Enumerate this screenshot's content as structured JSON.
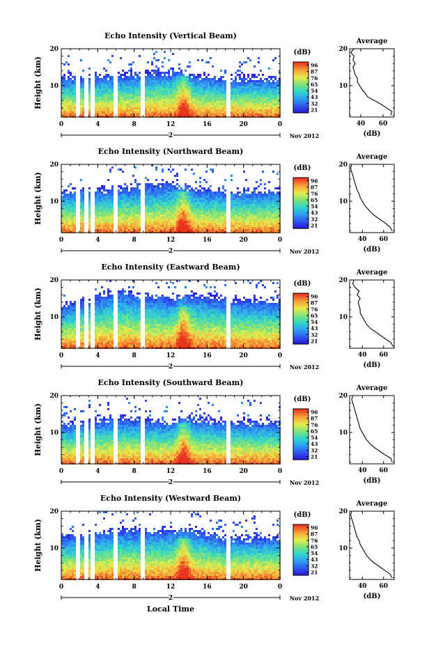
{
  "figure": {
    "xlabel": "Local Time",
    "date_label": "Nov 2012",
    "day_label": "2",
    "colorbar_unit": "(dB)",
    "colorbar_ticks": [
      "96",
      "87",
      "76",
      "65",
      "54",
      "43",
      "32",
      "21"
    ],
    "avg_title": "Average",
    "avg_xlabel": "(dB)"
  },
  "chart_data": [
    {
      "type": "heatmap",
      "title": "Echo Intensity (Vertical Beam)",
      "ylabel": "Height (km)",
      "x_ticks": [
        "0",
        "4",
        "8",
        "12",
        "16",
        "20",
        "0"
      ],
      "y_ticks": [
        "20",
        "10"
      ],
      "xlim": [
        0,
        24
      ],
      "ylim": [
        1.5,
        20
      ],
      "gaps_hours": [
        [
          1.6,
          2.0
        ],
        [
          2.5,
          2.8
        ],
        [
          3.2,
          3.5
        ],
        [
          5.7,
          6.0
        ],
        [
          8.6,
          9.0
        ],
        [
          18.1,
          18.5
        ]
      ],
      "echo_top_km": [
        [
          0,
          11.5
        ],
        [
          6,
          12
        ],
        [
          12,
          13
        ],
        [
          14,
          12
        ],
        [
          18,
          11
        ],
        [
          24,
          11
        ]
      ],
      "profile": {
        "xlabel": "(dB)",
        "x_ticks": [
          "40",
          "60"
        ],
        "xlim": [
          30,
          70
        ],
        "ylim": [
          1.5,
          20
        ],
        "y_ticks": [
          "20",
          "10"
        ],
        "height_km": [
          2,
          3,
          4,
          5,
          6,
          7,
          8,
          9,
          10,
          11,
          12,
          13,
          14,
          15,
          16,
          17,
          18,
          19,
          20
        ],
        "values_db": [
          67,
          68,
          63,
          58,
          52,
          46,
          44,
          41,
          39,
          37,
          37,
          35,
          34,
          33,
          35,
          33,
          34,
          31,
          34
        ]
      }
    },
    {
      "type": "heatmap",
      "title": "Echo Intensity (Northward Beam)",
      "ylabel": "Height (km)",
      "x_ticks": [
        "0",
        "4",
        "8",
        "12",
        "16",
        "20",
        "0"
      ],
      "y_ticks": [
        "20",
        "10"
      ],
      "xlim": [
        0,
        24
      ],
      "ylim": [
        1.5,
        20
      ],
      "gaps_hours": [
        [
          1.6,
          2.0
        ],
        [
          2.5,
          2.8
        ],
        [
          3.2,
          3.5
        ],
        [
          5.7,
          6.0
        ],
        [
          8.6,
          9.0
        ],
        [
          18.1,
          18.5
        ]
      ],
      "echo_top_km": [
        [
          0,
          12
        ],
        [
          6,
          12.5
        ],
        [
          12,
          14
        ],
        [
          14,
          12.5
        ],
        [
          18,
          12
        ],
        [
          24,
          12
        ]
      ],
      "profile": {
        "xlabel": "(dB)",
        "x_ticks": [
          "40",
          "60"
        ],
        "xlim": [
          28,
          70
        ],
        "ylim": [
          1.5,
          20
        ],
        "y_ticks": [
          "20",
          "10"
        ],
        "height_km": [
          2,
          3,
          4,
          5,
          6,
          7,
          8,
          9,
          10,
          11,
          12,
          13,
          14,
          15,
          16,
          17,
          18,
          19,
          20
        ],
        "values_db": [
          68,
          66,
          62,
          57,
          52,
          48,
          45,
          42,
          40,
          38,
          37,
          35,
          34,
          33,
          32,
          31,
          30,
          29,
          30
        ]
      }
    },
    {
      "type": "heatmap",
      "title": "Echo Intensity (Eastward Beam)",
      "ylabel": "Height (km)",
      "x_ticks": [
        "0",
        "4",
        "8",
        "12",
        "16",
        "20",
        "0"
      ],
      "y_ticks": [
        "20",
        "10"
      ],
      "xlim": [
        0,
        24
      ],
      "ylim": [
        1.5,
        20
      ],
      "gaps_hours": [
        [
          1.6,
          2.0
        ],
        [
          2.5,
          2.8
        ],
        [
          3.2,
          3.5
        ],
        [
          5.7,
          6.0
        ],
        [
          8.6,
          9.0
        ],
        [
          18.1,
          18.5
        ]
      ],
      "echo_top_km": [
        [
          0,
          12
        ],
        [
          6,
          16
        ],
        [
          12,
          14
        ],
        [
          14,
          15
        ],
        [
          18,
          14
        ],
        [
          24,
          13
        ]
      ],
      "profile": {
        "xlabel": "(dB)",
        "x_ticks": [
          "40",
          "60"
        ],
        "xlim": [
          28,
          70
        ],
        "ylim": [
          1.5,
          20
        ],
        "y_ticks": [
          "20",
          "10"
        ],
        "height_km": [
          2,
          3,
          4,
          5,
          6,
          7,
          8,
          9,
          10,
          11,
          12,
          13,
          14,
          15,
          16,
          17,
          18,
          19,
          20
        ],
        "values_db": [
          69,
          67,
          62,
          57,
          52,
          47,
          44,
          42,
          40,
          38,
          38,
          37,
          36,
          38,
          35,
          37,
          33,
          31,
          32
        ]
      }
    },
    {
      "type": "heatmap",
      "title": "Echo Intensity (Southward Beam)",
      "ylabel": "Height (km)",
      "x_ticks": [
        "0",
        "4",
        "8",
        "12",
        "16",
        "20",
        "0"
      ],
      "y_ticks": [
        "20",
        "10"
      ],
      "xlim": [
        0,
        24
      ],
      "ylim": [
        1.5,
        20
      ],
      "gaps_hours": [
        [
          1.6,
          2.0
        ],
        [
          2.5,
          2.8
        ],
        [
          3.2,
          3.5
        ],
        [
          5.7,
          6.0
        ],
        [
          8.6,
          9.0
        ],
        [
          18.1,
          18.5
        ]
      ],
      "echo_top_km": [
        [
          0,
          11.5
        ],
        [
          6,
          13
        ],
        [
          12,
          12
        ],
        [
          14,
          13
        ],
        [
          18,
          12
        ],
        [
          24,
          12
        ]
      ],
      "profile": {
        "xlabel": "(dB)",
        "x_ticks": [
          "40",
          "60"
        ],
        "xlim": [
          28,
          70
        ],
        "ylim": [
          1.5,
          20
        ],
        "y_ticks": [
          "20",
          "10"
        ],
        "height_km": [
          2,
          3,
          4,
          5,
          6,
          7,
          8,
          9,
          10,
          11,
          12,
          13,
          14,
          15,
          16,
          17,
          18,
          19,
          20
        ],
        "values_db": [
          68,
          67,
          61,
          56,
          51,
          47,
          44,
          42,
          40,
          38,
          37,
          36,
          35,
          34,
          33,
          32,
          31,
          30,
          31
        ]
      }
    },
    {
      "type": "heatmap",
      "title": "Echo Intensity (Westward Beam)",
      "ylabel": "Height (km)",
      "x_ticks": [
        "0",
        "4",
        "8",
        "12",
        "16",
        "20",
        "0"
      ],
      "y_ticks": [
        "20",
        "10"
      ],
      "xlim": [
        0,
        24
      ],
      "ylim": [
        1.5,
        20
      ],
      "gaps_hours": [
        [
          1.6,
          2.0
        ],
        [
          2.5,
          2.8
        ],
        [
          3.2,
          3.5
        ],
        [
          5.7,
          6.0
        ],
        [
          8.6,
          9.0
        ],
        [
          18.1,
          18.5
        ]
      ],
      "echo_top_km": [
        [
          0,
          12
        ],
        [
          6,
          14
        ],
        [
          12,
          14
        ],
        [
          14,
          14
        ],
        [
          18,
          12
        ],
        [
          24,
          12
        ]
      ],
      "profile": {
        "xlabel": "(dB)",
        "x_ticks": [
          "40",
          "60"
        ],
        "xlim": [
          28,
          70
        ],
        "ylim": [
          1.5,
          20
        ],
        "y_ticks": [
          "20",
          "10"
        ],
        "height_km": [
          2,
          3,
          4,
          5,
          6,
          7,
          8,
          9,
          10,
          11,
          12,
          13,
          14,
          15,
          16,
          17,
          18,
          19,
          20
        ],
        "values_db": [
          68,
          66,
          61,
          56,
          51,
          47,
          44,
          42,
          40,
          38,
          37,
          35,
          34,
          33,
          32,
          31,
          30,
          29,
          30
        ]
      }
    }
  ]
}
